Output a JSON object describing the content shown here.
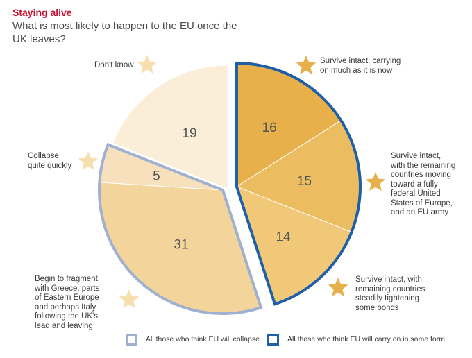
{
  "header": {
    "title": "Staying alive",
    "subtitle": "What is most likely to happen to the EU once the UK leaves?"
  },
  "chart_data": {
    "type": "pie",
    "title": "Staying alive",
    "subtitle": "What is most likely to happen to the EU once the UK leaves?",
    "slices": [
      {
        "category": "Survive intact, carrying on much as it is now",
        "value": 16,
        "group": "carry-on",
        "color": "#e8b04a"
      },
      {
        "category": "Survive intact, with the remaining countries moving toward a fully federal United States of Europe, and an EU army",
        "value": 15,
        "group": "carry-on",
        "color": "#ecbd60"
      },
      {
        "category": "Survive intact, with remaining countries steadily tightening some bonds",
        "value": 14,
        "group": "carry-on",
        "color": "#f0c877"
      },
      {
        "category": "Begin to fragment, with Greece, parts of Eastern Europe and perhaps Italy following the UK's lead and leaving",
        "value": 31,
        "group": "collapse",
        "color": "#f3d59c"
      },
      {
        "category": "Collapse quite quickly",
        "value": 5,
        "group": "collapse",
        "color": "#f7e1bc"
      },
      {
        "category": "Don't know",
        "value": 19,
        "group": "none",
        "color": "#fbeed8"
      }
    ],
    "category_labels": [
      "Survive intact, carrying\non much as it is now",
      "Survive intact,\nwith the remaining\ncountries moving\ntoward a fully\nfederal United\nStates of Europe,\nand an EU army",
      "Survive intact, with\nremaining countries\nsteadily tightening\nsome bonds",
      "Begin to fragment,\nwith Greece, parts\nof Eastern Europe\nand perhaps Italy\nfollowing the UK's\nlead and leaving",
      "Collapse\nquite quickly",
      "Don't know"
    ],
    "legend": [
      {
        "label": "All those who think EU will collapse",
        "color": "#9fb0d0"
      },
      {
        "label": "All those who think EU will carry on in some form",
        "color": "#1f5fa8"
      }
    ],
    "legend_position": "bottom",
    "star_color_carry_on": "#e8b04a",
    "star_color_other": "#f7dfb0"
  }
}
